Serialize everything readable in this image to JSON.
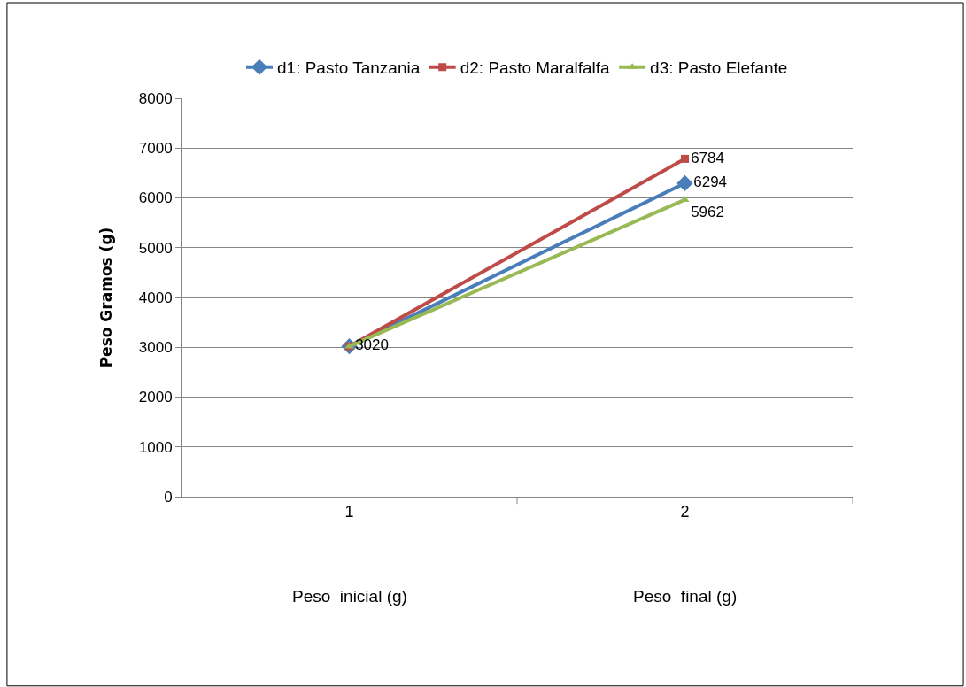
{
  "chart_data": {
    "type": "line",
    "categories": [
      "1",
      "2"
    ],
    "ylabel": "Peso Gramos (g)",
    "ylim": [
      0,
      8000
    ],
    "yticks": [
      0,
      1000,
      2000,
      3000,
      4000,
      5000,
      6000,
      7000,
      8000
    ],
    "grid": "y",
    "legend": "top",
    "series": [
      {
        "name": "d1: Pasto Tanzania",
        "color": "#4a7ebb",
        "marker": "diamond",
        "values": [
          3020,
          6294
        ],
        "value_labels": [
          null,
          "6294"
        ]
      },
      {
        "name": "d2: Pasto Maralfalfa",
        "color": "#be4b48",
        "marker": "square",
        "values": [
          3020,
          6784
        ],
        "value_labels": [
          null,
          "6784"
        ]
      },
      {
        "name": "d3: Pasto Elefante",
        "color": "#98b954",
        "marker": "triangle",
        "values": [
          3020,
          5962
        ],
        "value_labels": [
          "3020",
          "5962"
        ]
      }
    ],
    "annotations": [
      "Peso  inicial (g)",
      "Peso  final (g)"
    ]
  }
}
